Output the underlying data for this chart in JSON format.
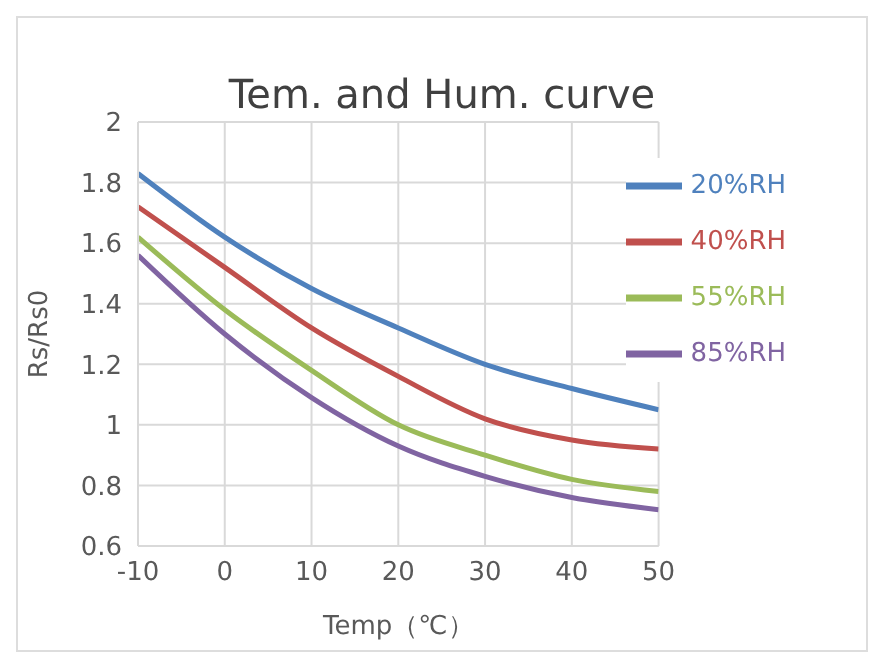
{
  "chart_data": {
    "type": "line",
    "title": "Tem. and Hum. curve",
    "xlabel": "Temp（℃）",
    "ylabel": "Rs/Rs0",
    "x": [
      -10,
      0,
      10,
      20,
      30,
      40,
      50
    ],
    "series": [
      {
        "name": "40%RH",
        "color": "#c0504d",
        "values": [
          1.72,
          1.52,
          1.32,
          1.16,
          1.02,
          0.95,
          0.92
        ]
      },
      {
        "name": "20%RH",
        "color": "#4f81bd",
        "values": [
          1.83,
          1.62,
          1.45,
          1.32,
          1.2,
          1.12,
          1.05
        ]
      },
      {
        "name": "55%RH",
        "color": "#9bbb59",
        "values": [
          1.62,
          1.38,
          1.18,
          1.0,
          0.9,
          0.82,
          0.78
        ]
      },
      {
        "name": "85%RH",
        "color": "#8064a2",
        "values": [
          1.56,
          1.3,
          1.09,
          0.93,
          0.83,
          0.76,
          0.72
        ]
      }
    ],
    "xlim": [
      -10,
      50
    ],
    "xticks": [
      -10,
      0,
      10,
      20,
      30,
      40,
      50
    ],
    "ylim": [
      0.6,
      2
    ],
    "yticks": [
      0.6,
      0.8,
      1,
      1.2,
      1.4,
      1.6,
      1.8,
      2
    ],
    "grid": true,
    "legend": "top right",
    "marker": "none",
    "line_style": "solid"
  }
}
